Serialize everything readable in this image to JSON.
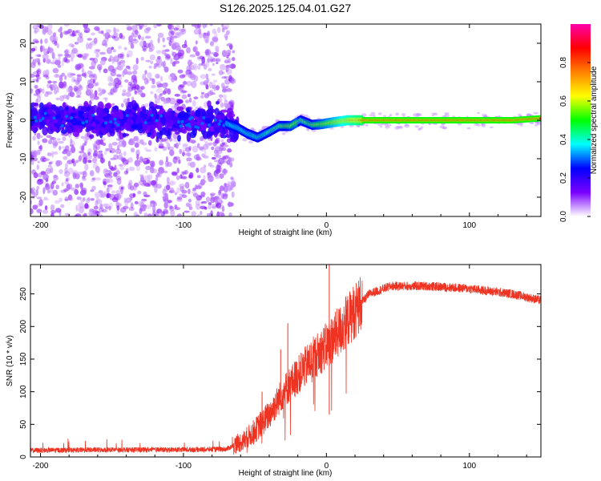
{
  "title": "S126.2025.125.04.01.G27",
  "chart_data": [
    {
      "type": "heatmap",
      "name": "spectrogram",
      "xlabel": "Height of straight line (km)",
      "ylabel": "Frequency (Hz)",
      "xlim": [
        -207,
        150
      ],
      "ylim": [
        -25,
        25
      ],
      "xticks": [
        -200,
        -100,
        0,
        100
      ],
      "yticks": [
        -20,
        -10,
        0,
        10,
        20
      ],
      "signal_track": [
        {
          "x": -205,
          "y": 0.5
        },
        {
          "x": -180,
          "y": 0.3
        },
        {
          "x": -150,
          "y": 0.0
        },
        {
          "x": -120,
          "y": 0.2
        },
        {
          "x": -90,
          "y": -0.3
        },
        {
          "x": -70,
          "y": -0.8
        },
        {
          "x": -62,
          "y": -2.0
        },
        {
          "x": -55,
          "y": -3.5
        },
        {
          "x": -48,
          "y": -4.5
        },
        {
          "x": -40,
          "y": -3.0
        },
        {
          "x": -33,
          "y": -1.5
        },
        {
          "x": -25,
          "y": -1.5
        },
        {
          "x": -18,
          "y": 0.0
        },
        {
          "x": -10,
          "y": -1.2
        },
        {
          "x": -3,
          "y": -1.0
        },
        {
          "x": 5,
          "y": -0.5
        },
        {
          "x": 15,
          "y": 0.0
        },
        {
          "x": 30,
          "y": 0.0
        },
        {
          "x": 60,
          "y": 0.0
        },
        {
          "x": 100,
          "y": 0.0
        },
        {
          "x": 130,
          "y": 0.0
        },
        {
          "x": 150,
          "y": 0.5
        }
      ],
      "colorbar": {
        "label": "Normalized spectral amplitude",
        "range": [
          0,
          1
        ],
        "ticks": [
          "0.0",
          "0.2",
          "0.4",
          "0.6",
          "0.8"
        ],
        "tick_values": [
          0,
          0.2,
          0.4,
          0.6,
          0.8
        ],
        "colormap": [
          "#ffffff",
          "#7a00ff",
          "#0000ff",
          "#00ffff",
          "#00ff00",
          "#ffff00",
          "#ff8000",
          "#ff0000",
          "#ff00aa"
        ]
      }
    },
    {
      "type": "line",
      "name": "snr",
      "xlabel": "Height of straight line (km)",
      "ylabel": "SNR (10 * v/v)",
      "xlim": [
        -207,
        150
      ],
      "ylim": [
        0,
        295
      ],
      "xticks": [
        -200,
        -100,
        0,
        100
      ],
      "yticks": [
        0,
        50,
        100,
        150,
        200,
        250
      ],
      "color": "#ee3322",
      "envelope": [
        {
          "x": -207,
          "y": 10
        },
        {
          "x": -150,
          "y": 11
        },
        {
          "x": -100,
          "y": 11
        },
        {
          "x": -70,
          "y": 12
        },
        {
          "x": -58,
          "y": 25
        },
        {
          "x": -50,
          "y": 40
        },
        {
          "x": -40,
          "y": 65
        },
        {
          "x": -30,
          "y": 100
        },
        {
          "x": -20,
          "y": 125
        },
        {
          "x": -10,
          "y": 150
        },
        {
          "x": 0,
          "y": 170
        },
        {
          "x": 10,
          "y": 195
        },
        {
          "x": 20,
          "y": 225
        },
        {
          "x": 30,
          "y": 250
        },
        {
          "x": 45,
          "y": 262
        },
        {
          "x": 70,
          "y": 262
        },
        {
          "x": 100,
          "y": 258
        },
        {
          "x": 130,
          "y": 250
        },
        {
          "x": 150,
          "y": 240
        }
      ],
      "spikes": [
        {
          "x": 2,
          "y": 295
        },
        {
          "x": -27,
          "y": 205
        },
        {
          "x": -32,
          "y": 165
        },
        {
          "x": 2,
          "y": 65
        },
        {
          "x": -45,
          "y": 100
        }
      ]
    }
  ]
}
